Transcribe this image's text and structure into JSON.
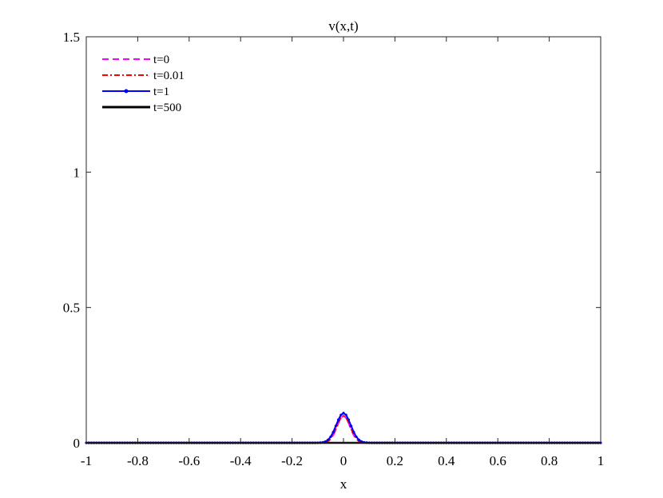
{
  "chart_data": {
    "type": "line",
    "title": "v(x,t)",
    "xlabel": "x",
    "ylabel": "",
    "xlim": [
      -1,
      1
    ],
    "ylim": [
      0,
      1.5
    ],
    "xticks": [
      -1,
      -0.8,
      -0.6,
      -0.4,
      -0.2,
      0,
      0.2,
      0.4,
      0.6,
      0.8,
      1
    ],
    "xtick_labels": [
      "-1",
      "-0.8",
      "-0.6",
      "-0.4",
      "-0.2",
      "0",
      "0.2",
      "0.4",
      "0.6",
      "0.8",
      "1"
    ],
    "yticks": [
      0,
      0.5,
      1,
      1.5
    ],
    "ytick_labels": [
      "0",
      "0.5",
      "1",
      "1.5"
    ],
    "grid": false,
    "legend_position": "top-left",
    "series": [
      {
        "name": "t=0",
        "color": "#ff00ff",
        "style": "dashed",
        "marker": "none",
        "amplitude": 0.1,
        "width_sigma": 0.025
      },
      {
        "name": "t=0.01",
        "color": "#ff0000",
        "style": "dashdot",
        "marker": "none",
        "amplitude": 0.1,
        "width_sigma": 0.026
      },
      {
        "name": "t=1",
        "color": "#0000ff",
        "style": "solid",
        "marker": "dot",
        "amplitude": 0.11,
        "width_sigma": 0.028
      },
      {
        "name": "t=500",
        "color": "#000000",
        "style": "solid",
        "marker": "none",
        "amplitude": 0.0,
        "width_sigma": 0.028
      }
    ]
  }
}
